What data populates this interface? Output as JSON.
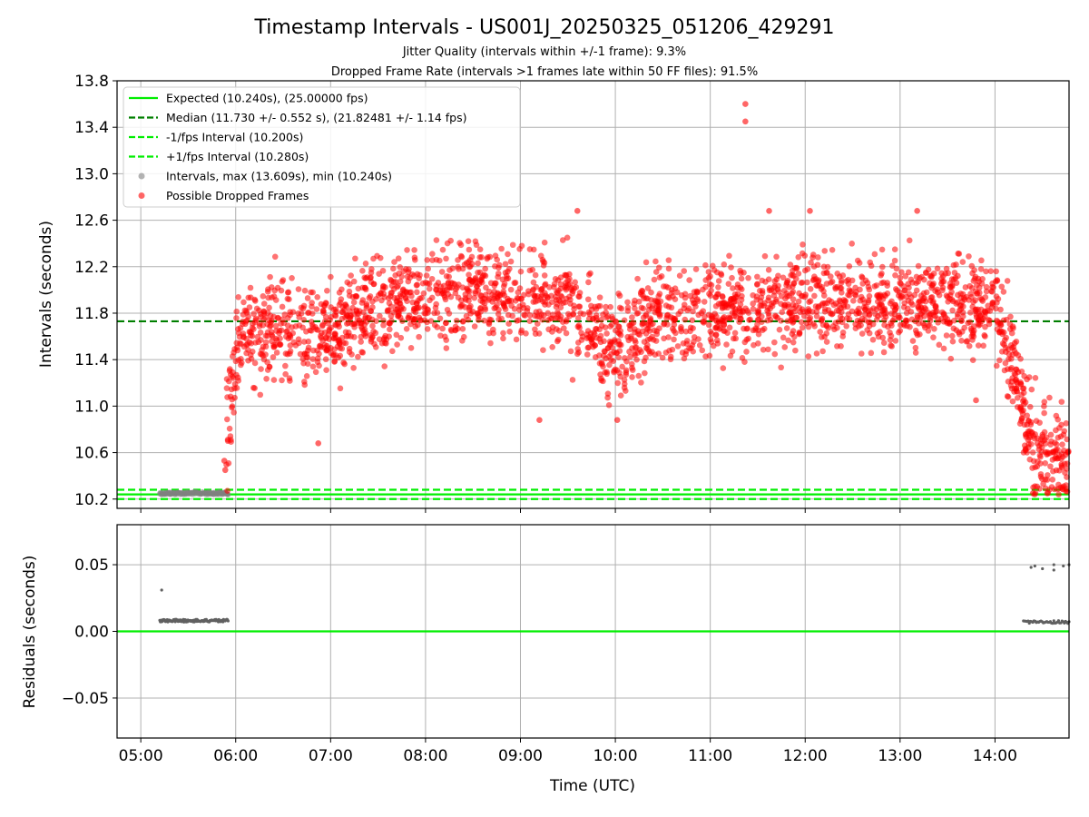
{
  "chart_data": {
    "type": "scatter",
    "title": "Timestamp Intervals - US001J_20250325_051206_429291",
    "subtitle_1": "Jitter Quality (intervals within +/-1 frame): 9.3%",
    "subtitle_2": "Dropped Frame Rate (intervals >1 frames late within 50 FF files): 91.5%",
    "xlabel": "Time (UTC)",
    "x_ticks": [
      "05:00",
      "06:00",
      "07:00",
      "08:00",
      "09:00",
      "10:00",
      "11:00",
      "12:00",
      "13:00",
      "14:00"
    ],
    "x_range_hours": [
      4.75,
      14.78
    ],
    "grid": true,
    "legend_position": "top-left",
    "colors": {
      "expected": "#00ee00",
      "median": "#007f00",
      "fps_interval": "#00ee00",
      "dropped": "#ff0000",
      "normal": "#808080",
      "residual": "#606060"
    },
    "top_panel": {
      "ylabel": "Intervals (seconds)",
      "ylim": [
        10.12,
        13.8
      ],
      "y_ticks": [
        "10.2",
        "10.6",
        "11.0",
        "11.4",
        "11.8",
        "12.2",
        "12.6",
        "13.0",
        "13.4",
        "13.8"
      ],
      "y_tick_values": [
        10.2,
        10.6,
        11.0,
        11.4,
        11.8,
        12.2,
        12.6,
        13.0,
        13.4,
        13.8
      ],
      "reference_lines": {
        "expected": 10.24,
        "median": 11.73,
        "minus_fps": 10.2,
        "plus_fps": 10.28
      },
      "legend": [
        {
          "label": "Expected (10.240s), (25.00000 fps)",
          "kind": "line-solid",
          "color": "#00ee00"
        },
        {
          "label": "Median (11.730 +/- 0.552 s), (21.82481 +/- 1.14 fps)",
          "kind": "line-dashed",
          "color": "#007f00"
        },
        {
          "label": "-1/fps Interval (10.200s)",
          "kind": "line-dashed",
          "color": "#00ee00"
        },
        {
          "label": "+1/fps Interval (10.280s)",
          "kind": "line-dashed",
          "color": "#00ee00"
        },
        {
          "label": "Intervals, max (13.609s), min (10.240s)",
          "kind": "dot",
          "color": "#808080"
        },
        {
          "label": "Possible Dropped Frames",
          "kind": "dot",
          "color": "#ff0000"
        }
      ],
      "series": [
        {
          "name": "Intervals, max (13.609s), min (10.240s)",
          "segment": {
            "x_start": 5.2,
            "x_end": 5.92,
            "y": 10.25
          }
        },
        {
          "name": "Possible Dropped Frames",
          "x_range": [
            5.9,
            14.78
          ],
          "envelope": [
            {
              "x": 5.9,
              "mean": 10.8,
              "spread": 0.35
            },
            {
              "x": 6.0,
              "mean": 11.55,
              "spread": 0.25
            },
            {
              "x": 6.5,
              "mean": 11.72,
              "spread": 0.22
            },
            {
              "x": 7.0,
              "mean": 11.6,
              "spread": 0.22
            },
            {
              "x": 7.5,
              "mean": 11.85,
              "spread": 0.22
            },
            {
              "x": 8.5,
              "mean": 12.0,
              "spread": 0.22
            },
            {
              "x": 9.5,
              "mean": 11.9,
              "spread": 0.22
            },
            {
              "x": 10.0,
              "mean": 11.45,
              "spread": 0.22
            },
            {
              "x": 10.5,
              "mean": 11.8,
              "spread": 0.22
            },
            {
              "x": 12.0,
              "mean": 11.9,
              "spread": 0.22
            },
            {
              "x": 13.5,
              "mean": 11.9,
              "spread": 0.22
            },
            {
              "x": 14.0,
              "mean": 11.85,
              "spread": 0.22
            },
            {
              "x": 14.2,
              "mean": 11.4,
              "spread": 0.25
            },
            {
              "x": 14.4,
              "mean": 10.6,
              "spread": 0.25
            },
            {
              "x": 14.78,
              "mean": 10.5,
              "spread": 0.25
            }
          ],
          "outliers": [
            {
              "x": 11.37,
              "y": 13.6
            },
            {
              "x": 11.37,
              "y": 13.45
            },
            {
              "x": 9.6,
              "y": 12.68
            },
            {
              "x": 11.62,
              "y": 12.68
            },
            {
              "x": 12.05,
              "y": 12.68
            },
            {
              "x": 13.18,
              "y": 12.68
            },
            {
              "x": 6.87,
              "y": 10.68
            },
            {
              "x": 9.2,
              "y": 10.88
            },
            {
              "x": 10.02,
              "y": 10.88
            },
            {
              "x": 5.88,
              "y": 10.53
            },
            {
              "x": 5.89,
              "y": 10.45
            },
            {
              "x": 13.8,
              "y": 11.05
            },
            {
              "x": 14.4,
              "y": 10.25
            }
          ]
        }
      ]
    },
    "bottom_panel": {
      "ylabel": "Residuals (seconds)",
      "ylim": [
        -0.08,
        0.08
      ],
      "y_ticks": [
        "0.05",
        "0.00",
        "−0.05"
      ],
      "y_tick_values": [
        0.05,
        0.0,
        -0.05
      ],
      "zero_line_color": "#00ee00",
      "series": [
        {
          "name": "Residuals",
          "segments": [
            {
              "x_start": 5.2,
              "x_end": 5.92,
              "y": 0.008
            },
            {
              "x_start": 14.3,
              "x_end": 14.78,
              "y": 0.007
            }
          ],
          "points": [
            {
              "x": 5.22,
              "y": 0.031
            },
            {
              "x": 14.38,
              "y": 0.048
            },
            {
              "x": 14.42,
              "y": 0.049
            },
            {
              "x": 14.5,
              "y": 0.047
            },
            {
              "x": 14.62,
              "y": 0.05
            },
            {
              "x": 14.62,
              "y": 0.046
            },
            {
              "x": 14.72,
              "y": 0.049
            },
            {
              "x": 14.78,
              "y": 0.05
            }
          ]
        }
      ]
    }
  }
}
